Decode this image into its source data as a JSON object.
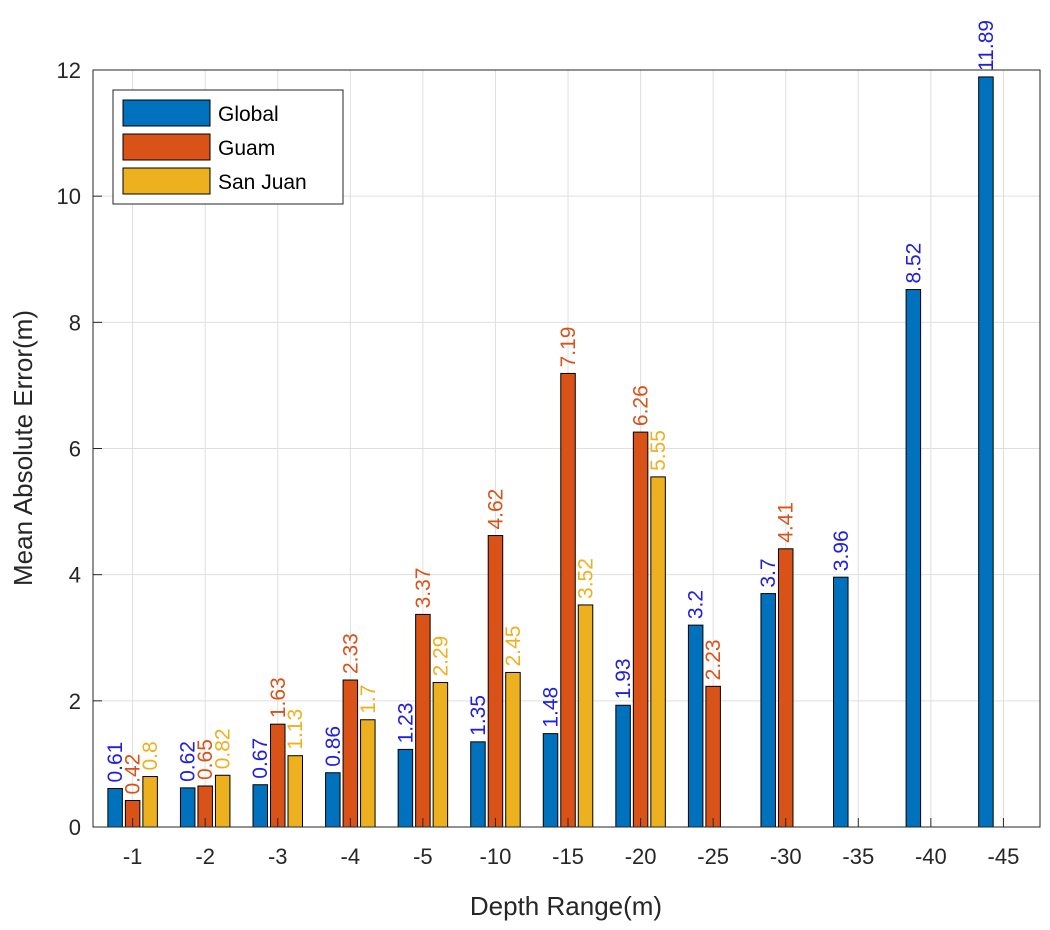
{
  "chart_data": {
    "type": "bar",
    "title": "",
    "xlabel": "Depth Range(m)",
    "ylabel": "Mean Absolute Error(m)",
    "ylim": [
      0,
      12
    ],
    "yticks": [
      0,
      2,
      4,
      6,
      8,
      10,
      12
    ],
    "grid": true,
    "legend_position": "top-left",
    "categories": [
      "-1",
      "-2",
      "-3",
      "-4",
      "-5",
      "-10",
      "-15",
      "-20",
      "-25",
      "-30",
      "-35",
      "-40",
      "-45"
    ],
    "series": [
      {
        "name": "Global",
        "color": "#0072BD",
        "label_color": "#1F1FE0",
        "values": [
          0.61,
          0.62,
          0.67,
          0.86,
          1.23,
          1.35,
          1.48,
          1.93,
          3.2,
          3.7,
          3.96,
          8.52,
          11.89
        ],
        "labels": [
          "0.61",
          "0.62",
          "0.67",
          "0.86",
          "1.23",
          "1.35",
          "1.48",
          "1.93",
          "3.2",
          "3.7",
          "3.96",
          "8.52",
          "11.89"
        ]
      },
      {
        "name": "Guam",
        "color": "#D95319",
        "label_color": "#D95319",
        "values": [
          0.42,
          0.65,
          1.63,
          2.33,
          3.37,
          4.62,
          7.19,
          6.26,
          2.23,
          4.41,
          null,
          null,
          null
        ],
        "labels": [
          "0.42",
          "0.65",
          "1.63",
          "2.33",
          "3.37",
          "4.62",
          "7.19",
          "6.26",
          "2.23",
          "4.41",
          null,
          null,
          null
        ]
      },
      {
        "name": "San Juan",
        "color": "#EDB120",
        "label_color": "#EDB120",
        "values": [
          0.8,
          0.82,
          1.13,
          1.7,
          2.29,
          2.45,
          3.52,
          5.55,
          null,
          null,
          null,
          null,
          null
        ],
        "labels": [
          "0.8",
          "0.82",
          "1.13",
          "1.7",
          "2.29",
          "2.45",
          "3.52",
          "5.55",
          null,
          null,
          null,
          null,
          null
        ]
      }
    ]
  }
}
